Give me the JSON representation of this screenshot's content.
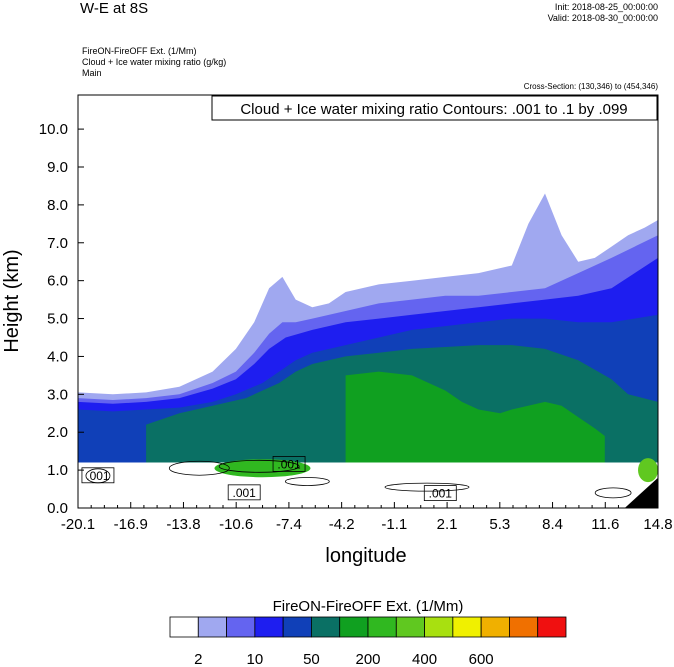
{
  "header": {
    "title": "W-E at 8S",
    "init": "Init: 2018-08-25_00:00:00",
    "valid": "Valid: 2018-08-30_00:00:00"
  },
  "fields": {
    "primary": "FireON-FireOFF Ext.   (1/Mm)",
    "contour": "Cloud + Ice water mixing ratio   (g/kg)",
    "domain": "Main"
  },
  "cross_section": "Cross-Section: (130,346) to (454,346)",
  "chart_data": {
    "type": "heatmap",
    "title": "Cloud + Ice water mixing ratio Contours: .001 to .1 by .099",
    "xlabel": "longitude",
    "ylabel": "Height (km)",
    "x_ticks": [
      "-20.1",
      "-16.9",
      "-13.8",
      "-10.6",
      "-7.4",
      "-4.2",
      "-1.1",
      "2.1",
      "5.3",
      "8.4",
      "11.6",
      "14.8"
    ],
    "y_ticks": [
      "0.0",
      "1.0",
      "2.0",
      "3.0",
      "4.0",
      "5.0",
      "6.0",
      "7.0",
      "8.0",
      "9.0",
      "10.0"
    ],
    "xlim": [
      -20.1,
      14.8
    ],
    "ylim": [
      0,
      10.9
    ],
    "colorbar": {
      "title": "FireON-FireOFF Ext.  (1/Mm)",
      "colors": [
        "#ffffff",
        "#a0a8f0",
        "#6464f0",
        "#1e1ef0",
        "#1040b8",
        "#0a7064",
        "#10a020",
        "#30b820",
        "#60c820",
        "#a8e010",
        "#f0f000",
        "#f0b000",
        "#f07000",
        "#f01010"
      ],
      "labels": [
        "2",
        "10",
        "50",
        "200",
        "400",
        "600"
      ]
    },
    "contour_labels": [
      ".001",
      ".001",
      ".001",
      ".001"
    ],
    "field_layers": [
      {
        "level": 1,
        "x": [
          -20.1,
          -18,
          -16,
          -14,
          -12,
          -10.6,
          -9.5,
          -8.6,
          -7.8,
          -7,
          -6,
          -5,
          -4,
          -2,
          0,
          2,
          4,
          6,
          7,
          8,
          9,
          10,
          11,
          12,
          13,
          14,
          14.8
        ],
        "top": [
          3.05,
          3.0,
          3.05,
          3.2,
          3.6,
          4.2,
          4.9,
          5.8,
          6.1,
          5.5,
          5.3,
          5.4,
          5.7,
          5.9,
          6.0,
          6.1,
          6.2,
          6.4,
          7.5,
          8.3,
          7.2,
          6.5,
          6.6,
          6.9,
          7.2,
          7.4,
          7.6
        ]
      },
      {
        "level": 2,
        "x": [
          -20.1,
          -18,
          -16,
          -14,
          -12,
          -10.6,
          -9.5,
          -8.6,
          -7.8,
          -7,
          -6,
          -4,
          -2,
          0,
          2,
          4,
          6,
          8,
          10,
          12,
          14.8
        ],
        "top": [
          2.9,
          2.85,
          2.9,
          3.0,
          3.3,
          3.6,
          4.1,
          4.6,
          4.9,
          4.9,
          5.0,
          5.2,
          5.4,
          5.5,
          5.6,
          5.6,
          5.7,
          5.8,
          6.2,
          6.6,
          7.2
        ]
      },
      {
        "level": 3,
        "x": [
          -20.1,
          -18,
          -16,
          -14,
          -12,
          -10.6,
          -9.5,
          -8.6,
          -7.6,
          -6,
          -4,
          -2,
          0,
          2,
          4,
          6,
          8,
          10,
          12,
          14.8
        ],
        "top": [
          2.8,
          2.75,
          2.8,
          2.9,
          3.15,
          3.4,
          3.8,
          4.2,
          4.5,
          4.7,
          4.9,
          5.0,
          5.1,
          5.2,
          5.3,
          5.4,
          5.5,
          5.6,
          5.8,
          6.6
        ]
      },
      {
        "level": 4,
        "x": [
          -20.1,
          -18,
          -16,
          -14,
          -12,
          -10.6,
          -9,
          -8,
          -7,
          -6,
          -4,
          -2,
          0,
          2,
          4,
          6,
          8,
          10,
          12,
          14.8
        ],
        "top": [
          2.6,
          2.55,
          2.6,
          2.65,
          2.8,
          3.0,
          3.3,
          3.6,
          3.9,
          4.1,
          4.3,
          4.5,
          4.7,
          4.8,
          4.9,
          5.0,
          5.0,
          4.9,
          4.9,
          5.1
        ]
      },
      {
        "level": 5,
        "x": [
          -16,
          -14,
          -12,
          -10,
          -8,
          -7,
          -6,
          -4,
          -2,
          0,
          2,
          4,
          6,
          8,
          10,
          12,
          13,
          14.8
        ],
        "top": [
          2.2,
          2.5,
          2.7,
          2.9,
          3.3,
          3.6,
          3.8,
          4.0,
          4.1,
          4.2,
          4.25,
          4.3,
          4.3,
          4.2,
          3.9,
          3.4,
          3.0,
          2.8
        ]
      },
      {
        "level": 6,
        "x": [
          -4,
          -2,
          0,
          2,
          3,
          4,
          5.3,
          6,
          8,
          9,
          10,
          11,
          11.6
        ],
        "top": [
          3.5,
          3.6,
          3.5,
          3.1,
          2.8,
          2.6,
          2.5,
          2.6,
          2.8,
          2.7,
          2.4,
          2.1,
          1.9
        ]
      }
    ],
    "bottom_line": 1.2
  }
}
